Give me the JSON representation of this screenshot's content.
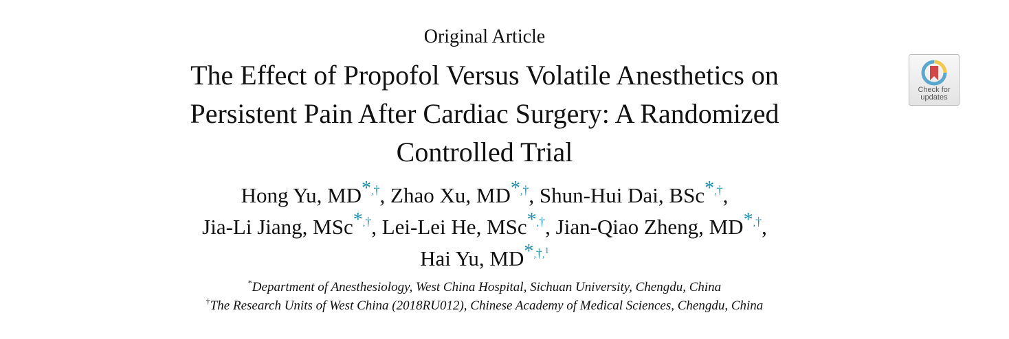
{
  "header": {
    "article_type": "Original Article"
  },
  "title": {
    "lines": [
      "The Effect of Propofol Versus Volatile Anesthetics on",
      "Persistent Pain After Cardiac Surgery: A Randomized",
      "Controlled Trial"
    ]
  },
  "authors": [
    {
      "name": "Hong Yu, MD",
      "marks": {
        "ast": "*",
        "sep": ",",
        "dag": "†"
      },
      "trail": ", "
    },
    {
      "name": "Zhao Xu, MD",
      "marks": {
        "ast": "*",
        "sep": ",",
        "dag": "†"
      },
      "trail": ", "
    },
    {
      "name": "Shun-Hui Dai, BSc",
      "marks": {
        "ast": "*",
        "sep": ",",
        "dag": "†"
      },
      "trail": ","
    },
    {
      "name": "Jia-Li Jiang, MSc",
      "marks": {
        "ast": "*",
        "sep": ",",
        "dag": "†"
      },
      "trail": ", "
    },
    {
      "name": "Lei-Lei He, MSc",
      "marks": {
        "ast": "*",
        "sep": ",",
        "dag": "†"
      },
      "trail": ", "
    },
    {
      "name": "Jian-Qiao Zheng, MD",
      "marks": {
        "ast": "*",
        "sep": ",",
        "dag": "†"
      },
      "trail": ","
    },
    {
      "name": "Hai Yu, MD",
      "marks": {
        "ast": "*",
        "sep": ",",
        "dag": "†",
        "sep2": ",",
        "note": "1"
      },
      "trail": ""
    }
  ],
  "affiliations": [
    {
      "mark": "*",
      "text": "Department of Anesthesiology, West China Hospital, Sichuan University, Chengdu, China"
    },
    {
      "mark": "†",
      "text": "The Research Units of West China (2018RU012), Chinese Academy of Medical Sciences, Chengdu, China"
    }
  ],
  "badge": {
    "icon": "crossmark-bookmark-icon",
    "line1": "Check for",
    "line2": "updates"
  },
  "colors": {
    "affiliation_mark": "#1d8fb0",
    "badge_ring_yellow": "#f2c94c",
    "badge_ring_blue": "#5aa7cf",
    "badge_bookmark": "#d64545"
  }
}
